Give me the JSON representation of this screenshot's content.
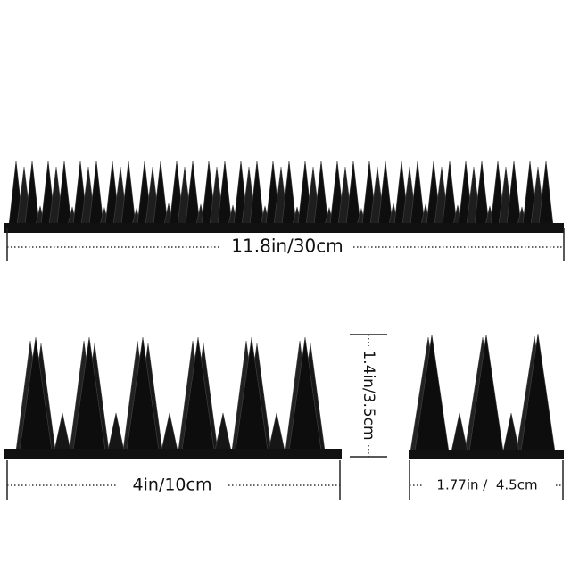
{
  "dimensions": {
    "length": "11.8in/30cm",
    "segment_length": "4in/10cm",
    "height": "1.4in/3.5cm",
    "width": "1.77in /  4.5cm"
  }
}
